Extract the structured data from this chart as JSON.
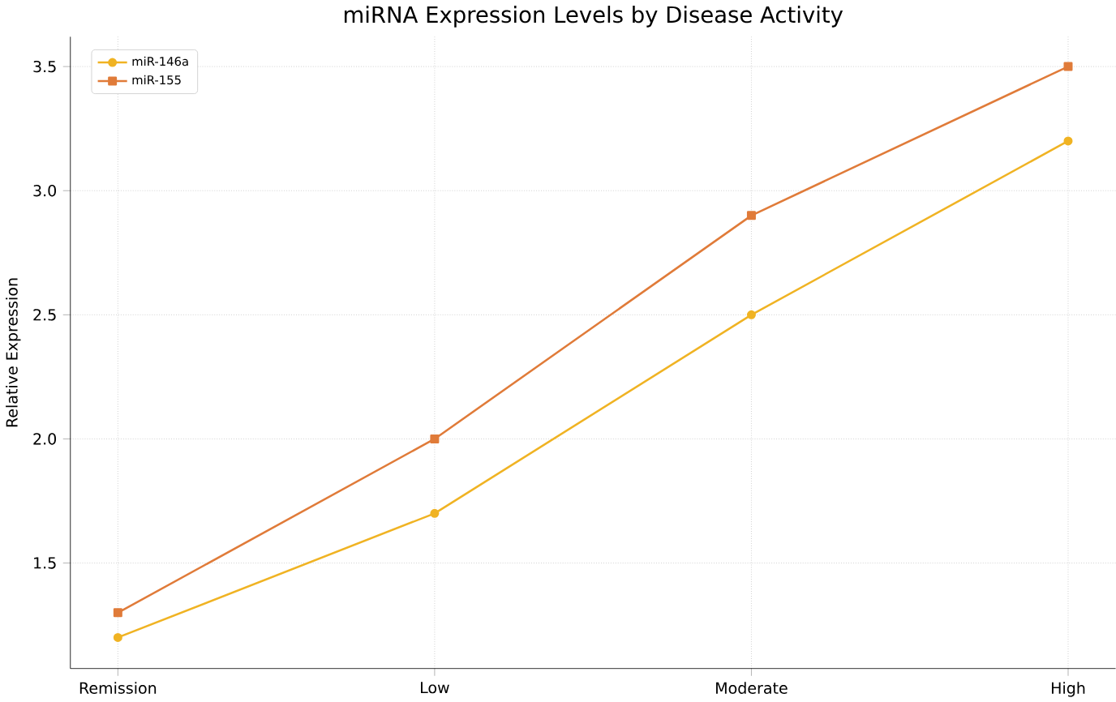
{
  "chart_data": {
    "type": "line",
    "title": "miRNA Expression Levels by Disease Activity",
    "ylabel": "Relative Expression",
    "categories": [
      "Remission",
      "Low",
      "Moderate",
      "High"
    ],
    "series": [
      {
        "name": "miR-146a",
        "color": "#f0b323",
        "marker": "circle",
        "values": [
          1.2,
          1.7,
          2.5,
          3.2
        ]
      },
      {
        "name": "miR-155",
        "color": "#e07b39",
        "marker": "square",
        "values": [
          1.3,
          2.0,
          2.9,
          3.5
        ]
      }
    ],
    "ylim": [
      1.075,
      3.62
    ],
    "yticks": [
      1.5,
      {
        "value": 2,
        "label": "2.0"
      },
      2.5,
      {
        "value": 3,
        "label": "3.0"
      },
      3.5
    ],
    "grid": true,
    "legend": "top left"
  }
}
